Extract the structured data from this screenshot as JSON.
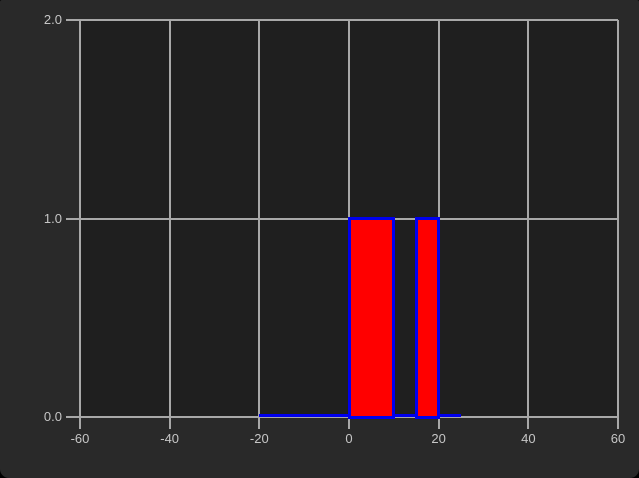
{
  "window": {
    "outer_background": "#292929",
    "frame_background": "#000000"
  },
  "chart_data": {
    "type": "bar",
    "title": "",
    "xlabel": "",
    "ylabel": "",
    "xlim": [
      -60,
      60
    ],
    "ylim": [
      0.0,
      2.0
    ],
    "grid": true,
    "legend": false,
    "xticks": [
      "-60",
      "-40",
      "-20",
      "0",
      "20",
      "40",
      "60"
    ],
    "xtick_values": [
      -60,
      -40,
      -20,
      0,
      20,
      40,
      60
    ],
    "yticks": [
      "0.0",
      "1.0",
      "2.0"
    ],
    "ytick_values": [
      0.0,
      1.0,
      2.0
    ],
    "bars": [
      {
        "x_start": 0,
        "x_end": 10,
        "height": 1.0
      },
      {
        "x_start": 15,
        "x_end": 20,
        "height": 1.0
      }
    ],
    "baseline": {
      "x_start": -20,
      "x_end": 25,
      "y": 0.0
    },
    "colors": {
      "bar_fill": "#ff0000",
      "line": "#0000ee",
      "grid": "#a8a8a8",
      "tick_label": "#c6c6c6",
      "plot_bg": "#1f1f1f",
      "outer_bg": "#292929"
    }
  }
}
